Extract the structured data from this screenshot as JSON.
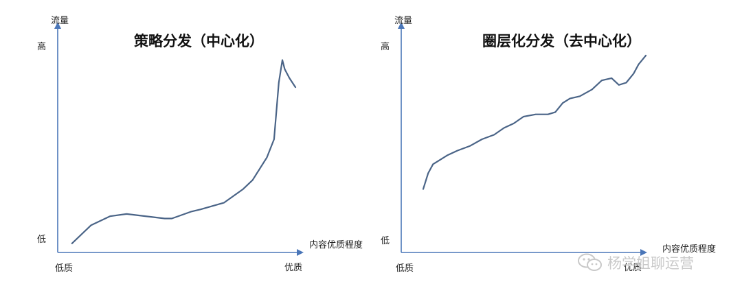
{
  "charts": [
    {
      "id": "left",
      "title": "策略分发（中心化）",
      "y_axis_label": "流量",
      "y_high_label": "高",
      "y_low_label": "低",
      "x_axis_label": "内容优质程度",
      "x_low_label": "低质",
      "x_high_label": "优质",
      "line_color": "#4a6487",
      "axis_color": "#4a76b8"
    },
    {
      "id": "right",
      "title": "圈层化分发（去中心化）",
      "y_axis_label": "流量",
      "y_high_label": "高",
      "y_low_label": "低",
      "x_axis_label": "内容优质程度",
      "x_low_label": "低质",
      "x_high_label": "优质",
      "line_color": "#4a6487",
      "axis_color": "#4a76b8"
    }
  ],
  "chart_data": [
    {
      "type": "line",
      "title": "策略分发（中心化）",
      "xlabel": "内容优质程度",
      "ylabel": "流量",
      "x_tick_labels": [
        "低质",
        "优质"
      ],
      "y_tick_labels": [
        "低",
        "高"
      ],
      "xlim": [
        0,
        1
      ],
      "ylim": [
        0,
        1
      ],
      "grid": false,
      "series": [
        {
          "x": [
            0.06,
            0.14,
            0.22,
            0.29,
            0.45,
            0.48,
            0.56,
            0.6,
            0.7,
            0.78,
            0.82,
            0.85,
            0.88,
            0.91,
            0.93,
            0.945,
            0.955,
            0.975,
            1.0
          ],
          "y": [
            0.04,
            0.12,
            0.16,
            0.17,
            0.15,
            0.15,
            0.18,
            0.19,
            0.22,
            0.28,
            0.32,
            0.37,
            0.42,
            0.5,
            0.75,
            0.85,
            0.81,
            0.77,
            0.73
          ]
        }
      ]
    },
    {
      "type": "line",
      "title": "圈层化分发（去中心化）",
      "xlabel": "内容优质程度",
      "ylabel": "流量",
      "x_tick_labels": [
        "低质",
        "优质"
      ],
      "y_tick_labels": [
        "低",
        "高"
      ],
      "xlim": [
        0,
        1
      ],
      "ylim": [
        0,
        1
      ],
      "grid": false,
      "series": [
        {
          "x": [
            0.09,
            0.11,
            0.13,
            0.16,
            0.19,
            0.23,
            0.28,
            0.33,
            0.38,
            0.42,
            0.46,
            0.5,
            0.55,
            0.6,
            0.63,
            0.66,
            0.69,
            0.73,
            0.78,
            0.82,
            0.86,
            0.89,
            0.92,
            0.95,
            0.97,
            1.0
          ],
          "y": [
            0.28,
            0.35,
            0.39,
            0.41,
            0.43,
            0.45,
            0.47,
            0.5,
            0.52,
            0.55,
            0.57,
            0.6,
            0.61,
            0.61,
            0.62,
            0.66,
            0.68,
            0.69,
            0.72,
            0.76,
            0.77,
            0.74,
            0.75,
            0.79,
            0.83,
            0.87
          ]
        }
      ]
    }
  ],
  "watermark": {
    "text": "杨学姐聊运营",
    "icon": "wechat-icon"
  }
}
